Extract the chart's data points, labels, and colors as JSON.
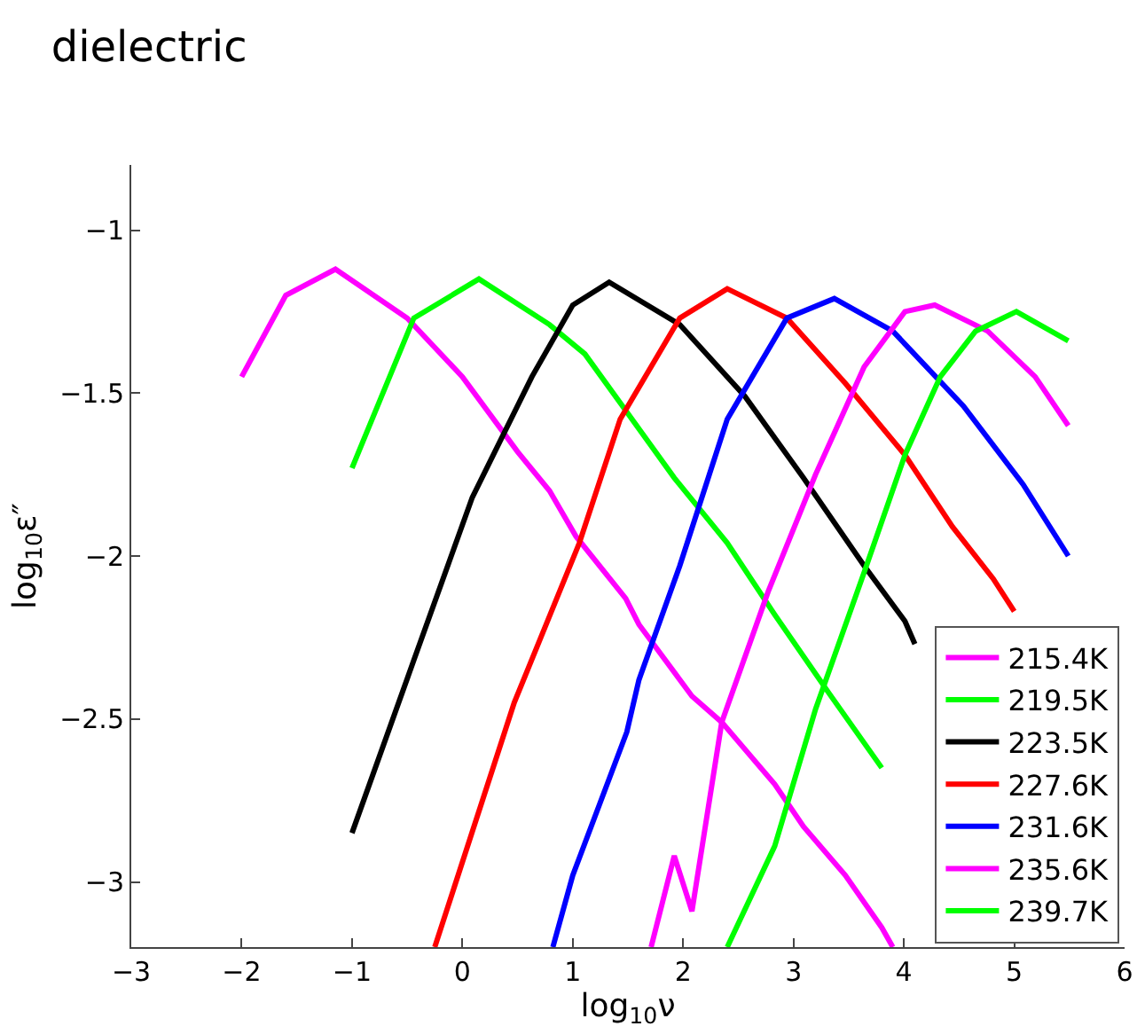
{
  "chart_data": {
    "type": "line",
    "title": "dielectric",
    "xlabel": "log$_{10}$ν",
    "ylabel": "log$_{10}$ε″",
    "xlim": [
      -3,
      6
    ],
    "xticks": [
      -3,
      -2,
      -1,
      0,
      1,
      2,
      3,
      4,
      5,
      6
    ],
    "ylim": [
      -3.2,
      -0.8
    ],
    "yticks": [
      -3,
      -2.5,
      -2,
      -1.5,
      -1
    ],
    "grid": false,
    "legend": "bottom right",
    "line_style": "solid",
    "marker": "none",
    "series": [
      {
        "name": "215.4K",
        "color": "#ff00ff",
        "x": [
          -2,
          -1.6,
          -1.15,
          -0.5,
          0,
          0.5,
          0.79,
          1.03,
          1.48,
          1.6,
          2.08,
          2.35,
          2.83,
          3.09,
          3.47,
          3.8,
          3.9
        ],
        "values": [
          -1.45,
          -1.2,
          -1.12,
          -1.27,
          -1.45,
          -1.68,
          -1.8,
          -1.94,
          -2.13,
          -2.21,
          -2.43,
          -2.51,
          -2.7,
          -2.83,
          -2.98,
          -3.14,
          -3.2
        ]
      },
      {
        "name": "219.5K",
        "color": "#00ff00",
        "x": [
          -1,
          -0.44,
          0.15,
          0.79,
          1.11,
          1.43,
          1.92,
          2.4,
          2.83,
          3.32,
          3.8
        ],
        "values": [
          -1.73,
          -1.27,
          -1.15,
          -1.29,
          -1.38,
          -1.53,
          -1.76,
          -1.96,
          -2.18,
          -2.42,
          -2.65
        ]
      },
      {
        "name": "223.5K",
        "color": "#000000",
        "x": [
          -1,
          -0.44,
          0.09,
          0.63,
          1.0,
          1.33,
          1.97,
          2.56,
          3.09,
          3.64,
          4.01,
          4.1
        ],
        "values": [
          -2.85,
          -2.32,
          -1.82,
          -1.45,
          -1.23,
          -1.16,
          -1.29,
          -1.51,
          -1.76,
          -2.03,
          -2.2,
          -2.27
        ]
      },
      {
        "name": "227.6K",
        "color": "#ff0000",
        "x": [
          -0.25,
          0.47,
          1.06,
          1.43,
          1.97,
          2.4,
          2.94,
          3.47,
          4.01,
          4.44,
          4.81,
          5.0
        ],
        "values": [
          -3.2,
          -2.45,
          -1.96,
          -1.58,
          -1.27,
          -1.18,
          -1.27,
          -1.47,
          -1.69,
          -1.91,
          -2.07,
          -2.17
        ]
      },
      {
        "name": "231.6K",
        "color": "#0000ff",
        "x": [
          0.82,
          1.0,
          1.49,
          1.6,
          1.97,
          2.4,
          2.94,
          3.37,
          3.9,
          4.54,
          5.08,
          5.49
        ],
        "values": [
          -3.2,
          -2.98,
          -2.54,
          -2.38,
          -2.03,
          -1.58,
          -1.27,
          -1.21,
          -1.31,
          -1.54,
          -1.78,
          -2.0
        ]
      },
      {
        "name": "235.6K",
        "color": "#ff00ff",
        "x": [
          1.71,
          1.92,
          2.08,
          2.35,
          2.77,
          3.2,
          3.64,
          4.01,
          4.28,
          4.76,
          5.19,
          5.49
        ],
        "values": [
          -3.2,
          -2.92,
          -3.09,
          -2.51,
          -2.11,
          -1.75,
          -1.42,
          -1.25,
          -1.23,
          -1.31,
          -1.45,
          -1.6
        ]
      },
      {
        "name": "239.7K",
        "color": "#00ff00",
        "x": [
          2.4,
          2.83,
          3.2,
          3.64,
          4.01,
          4.33,
          4.65,
          5.02,
          5.49
        ],
        "values": [
          -3.2,
          -2.89,
          -2.47,
          -2.05,
          -1.69,
          -1.45,
          -1.31,
          -1.25,
          -1.34
        ]
      }
    ]
  }
}
